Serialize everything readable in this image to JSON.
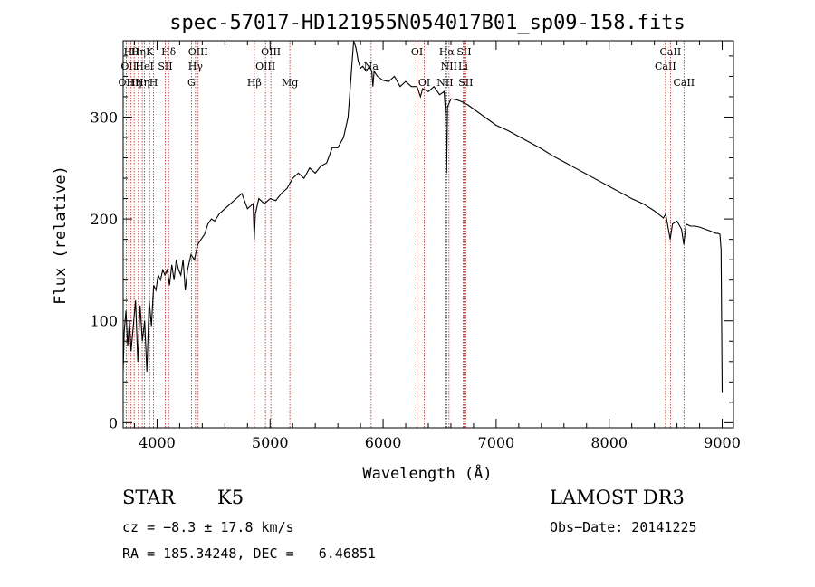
{
  "chart_data": {
    "type": "line",
    "title": "spec-57017-HD121955N054017B01_sp09-158.fits",
    "xlabel": "Wavelength (Å)",
    "ylabel": "Flux (relative)",
    "xlim": [
      3700,
      9100
    ],
    "ylim": [
      -5,
      375
    ],
    "xticks": [
      4000,
      5000,
      6000,
      7000,
      8000,
      9000
    ],
    "yticks": [
      0,
      100,
      200,
      300
    ],
    "grid": false,
    "series": [
      {
        "name": "flux",
        "x": [
          3700,
          3710,
          3725,
          3740,
          3755,
          3770,
          3790,
          3810,
          3830,
          3850,
          3870,
          3890,
          3910,
          3930,
          3950,
          3970,
          3990,
          4010,
          4030,
          4050,
          4070,
          4090,
          4110,
          4130,
          4150,
          4170,
          4190,
          4210,
          4230,
          4250,
          4270,
          4300,
          4330,
          4360,
          4390,
          4420,
          4450,
          4480,
          4510,
          4550,
          4600,
          4650,
          4700,
          4750,
          4800,
          4850,
          4860,
          4870,
          4900,
          4950,
          5000,
          5050,
          5100,
          5150,
          5200,
          5250,
          5300,
          5350,
          5400,
          5450,
          5500,
          5550,
          5600,
          5650,
          5690,
          5720,
          5740,
          5760,
          5780,
          5800,
          5820,
          5850,
          5880,
          5900,
          5910,
          5920,
          5950,
          6000,
          6050,
          6100,
          6150,
          6200,
          6250,
          6300,
          6330,
          6350,
          6400,
          6450,
          6500,
          6540,
          6555,
          6562,
          6570,
          6600,
          6650,
          6700,
          6750,
          6800,
          6900,
          7000,
          7100,
          7200,
          7300,
          7400,
          7500,
          7600,
          7700,
          7800,
          7900,
          8000,
          8100,
          8200,
          8300,
          8400,
          8480,
          8500,
          8540,
          8560,
          8600,
          8640,
          8660,
          8680,
          8720,
          8760,
          8800,
          8850,
          8900,
          8940,
          8960,
          8980,
          8990,
          9000
        ],
        "y": [
          50,
          90,
          110,
          75,
          100,
          70,
          95,
          120,
          60,
          115,
          80,
          100,
          50,
          120,
          95,
          135,
          130,
          145,
          140,
          150,
          145,
          150,
          135,
          155,
          140,
          160,
          150,
          145,
          160,
          130,
          150,
          165,
          160,
          175,
          180,
          185,
          195,
          200,
          198,
          205,
          210,
          215,
          220,
          225,
          210,
          215,
          180,
          205,
          220,
          215,
          220,
          218,
          225,
          230,
          240,
          245,
          240,
          250,
          245,
          252,
          255,
          270,
          270,
          280,
          300,
          345,
          375,
          368,
          355,
          348,
          350,
          345,
          350,
          345,
          330,
          345,
          340,
          336,
          335,
          340,
          330,
          335,
          330,
          330,
          320,
          328,
          325,
          330,
          322,
          325,
          300,
          245,
          310,
          318,
          317,
          315,
          312,
          308,
          300,
          292,
          287,
          281,
          275,
          269,
          262,
          256,
          250,
          244,
          238,
          232,
          226,
          220,
          215,
          208,
          201,
          205,
          180,
          195,
          198,
          190,
          175,
          195,
          193,
          193,
          192,
          190,
          188,
          186,
          186,
          185,
          170,
          30
        ]
      }
    ],
    "lines": [
      {
        "w": 3727,
        "label": "OII",
        "row": 2
      },
      {
        "w": 3750,
        "label": "OII",
        "row": 1
      },
      {
        "w": 3770,
        "label": "Hθ",
        "row": 0
      },
      {
        "w": 3797,
        "label": "Hη",
        "row": 2
      },
      {
        "w": 3835,
        "label": "Hη",
        "row": 0
      },
      {
        "w": 3869,
        "label": "Hη",
        "row": 2
      },
      {
        "w": 3889,
        "label": "HeI",
        "row": 1
      },
      {
        "w": 3934,
        "label": "K",
        "row": 0
      },
      {
        "w": 3969,
        "label": "H",
        "row": 2
      },
      {
        "w": 4072,
        "label": "SII",
        "row": 1
      },
      {
        "w": 4102,
        "label": "Hδ",
        "row": 0
      },
      {
        "w": 4304,
        "label": "G",
        "row": 2
      },
      {
        "w": 4340,
        "label": "Hγ",
        "row": 1
      },
      {
        "w": 4363,
        "label": "OIII",
        "row": 0
      },
      {
        "w": 4861,
        "label": "Hβ",
        "row": 2
      },
      {
        "w": 4959,
        "label": "OIII",
        "row": 1
      },
      {
        "w": 5007,
        "label": "OIII",
        "row": 0
      },
      {
        "w": 5175,
        "label": "Mg",
        "row": 2
      },
      {
        "w": 5894,
        "label": "Na",
        "row": 1
      },
      {
        "w": 6300,
        "label": "OI",
        "row": 0
      },
      {
        "w": 6364,
        "label": "OI",
        "row": 2
      },
      {
        "w": 6548,
        "label": "NII",
        "row": 2
      },
      {
        "w": 6563,
        "label": "Hα",
        "row": 0
      },
      {
        "w": 6583,
        "label": "NII",
        "row": 1
      },
      {
        "w": 6708,
        "label": "Li",
        "row": 1
      },
      {
        "w": 6716,
        "label": "SII",
        "row": 0
      },
      {
        "w": 6731,
        "label": "SII",
        "row": 2
      },
      {
        "w": 8498,
        "label": "CaII",
        "row": 1
      },
      {
        "w": 8542,
        "label": "CaII",
        "row": 0
      },
      {
        "w": 8662,
        "label": "CaII",
        "row": 2
      }
    ]
  },
  "info": {
    "class_label": "STAR",
    "subclass": "K5",
    "survey": "LAMOST DR3",
    "cz": "cz = −8.3 ± 17.8 km/s",
    "obs_date": "Obs−Date: 20141225",
    "coords": "RA = 185.34248, DEC =   6.46851"
  }
}
